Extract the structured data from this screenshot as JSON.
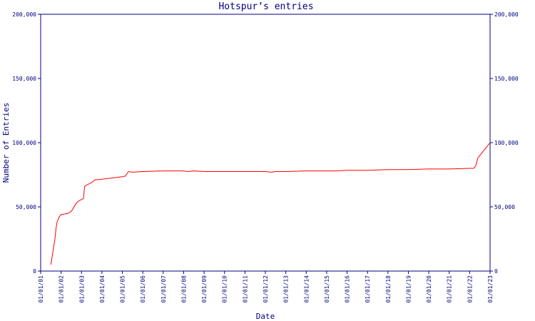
{
  "chart_data": {
    "type": "line",
    "title": "Hotspur’s entries",
    "xlabel": "Date",
    "ylabel": "Number of Entries",
    "ylim": [
      0,
      200000
    ],
    "y_ticks": [
      "0",
      "50,000",
      "100,000",
      "150,000",
      "200,000"
    ],
    "y_ticks_right": [
      "0",
      "50,000",
      "100,000",
      "150,000",
      "200,000"
    ],
    "y_tick_values": [
      0,
      50000,
      100000,
      150000,
      200000
    ],
    "x_ticks": [
      "01/01/01",
      "01/01/02",
      "01/01/03",
      "01/01/04",
      "01/01/05",
      "01/01/06",
      "01/01/07",
      "01/01/08",
      "01/01/09",
      "01/01/10",
      "01/01/11",
      "01/01/12",
      "01/01/13",
      "01/01/14",
      "01/01/15",
      "01/01/16",
      "01/01/17",
      "01/01/18",
      "01/01/19",
      "01/01/20",
      "01/01/21",
      "01/01/22",
      "01/01/23"
    ],
    "x_tick_years": [
      2001,
      2002,
      2003,
      2004,
      2005,
      2006,
      2007,
      2008,
      2009,
      2010,
      2011,
      2012,
      2013,
      2014,
      2015,
      2016,
      2017,
      2018,
      2019,
      2020,
      2021,
      2022,
      2023
    ],
    "xlim": [
      2001.0,
      2023.0
    ],
    "grid": false,
    "line_color": "#ff0000",
    "axis_color": "#000080",
    "series": [
      {
        "x": [
          2001.5,
          2001.6,
          2001.7,
          2001.75,
          2001.8,
          2001.85,
          2001.9,
          2001.95,
          2002.0,
          2002.05,
          2002.2,
          2002.35,
          2002.5,
          2002.6,
          2002.75,
          2002.9,
          2003.1,
          2003.15,
          2003.25,
          2003.5,
          2003.65,
          2004.0,
          2004.5,
          2005.0,
          2005.15,
          2005.3,
          2005.5,
          2006.0,
          2007.0,
          2008.0,
          2008.2,
          2008.5,
          2009.0,
          2010.0,
          2011.0,
          2012.0,
          2012.3,
          2012.5,
          2013.0,
          2014.0,
          2015.0,
          2015.5,
          2016.0,
          2017.0,
          2018.0,
          2019.0,
          2020.0,
          2021.0,
          2022.0,
          2022.2,
          2022.3,
          2022.4,
          2022.6,
          2022.8,
          2023.0
        ],
        "y": [
          5000,
          15000,
          25000,
          33000,
          38000,
          40000,
          42000,
          43000,
          44000,
          44000,
          44500,
          45000,
          46500,
          49000,
          53000,
          55000,
          56500,
          66000,
          67000,
          69000,
          71000,
          71500,
          72500,
          73500,
          74000,
          77500,
          77000,
          77500,
          78000,
          78000,
          77500,
          78000,
          77500,
          77500,
          77500,
          77500,
          77000,
          77500,
          77500,
          78000,
          78000,
          78000,
          78500,
          78500,
          79000,
          79000,
          79500,
          79500,
          80000,
          80000,
          82000,
          88000,
          92000,
          96000,
          100000
        ]
      }
    ]
  }
}
